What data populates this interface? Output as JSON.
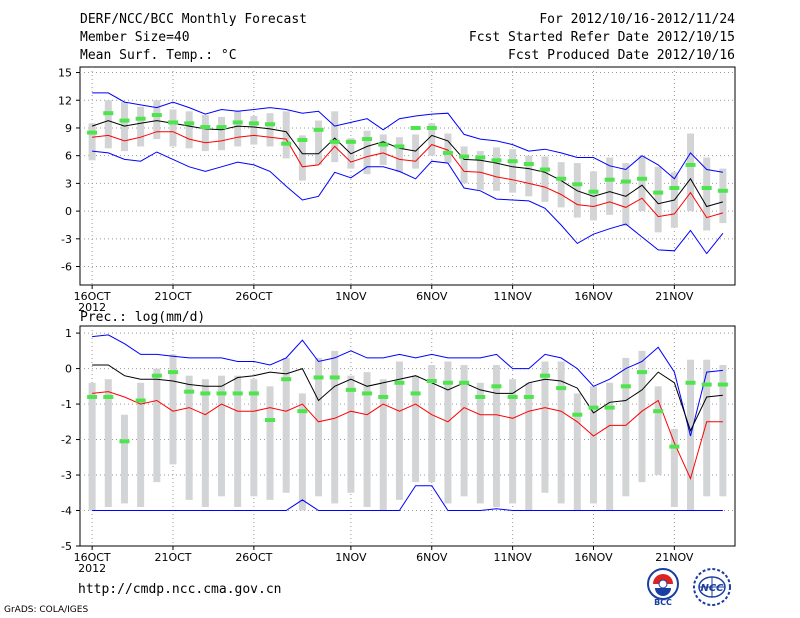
{
  "header": {
    "title": "DERF/NCC/BCC Monthly Forecast",
    "member_size": "Member Size=40",
    "variable": "Mean Surf. Temp.: °C",
    "forecast_period": "For 2012/10/16-2012/11/24",
    "started_refer": "Fcst Started Refer Date 2012/10/15",
    "produced": "Fcst Produced Date 2012/10/16"
  },
  "footer": {
    "url": "http://cmdp.ncc.cma.gov.cn",
    "credit": "GrADS: COLA/IGES",
    "logo_left_text": "BCC",
    "logo_right_text": "NCC"
  },
  "colors": {
    "max_line": "#0000ff",
    "min_line": "#ff0000",
    "mean_line": "#000000",
    "box": "#d3d4d6",
    "median_marker": "#4ee44e",
    "grid": "#999999"
  },
  "chart_data": [
    {
      "type": "line",
      "title": "Mean Surf. Temp.: °C",
      "x_tick_labels": [
        "16OCT",
        "21OCT",
        "26OCT",
        "1NOV",
        "6NOV",
        "11NOV",
        "16NOV",
        "21NOV"
      ],
      "x_tick_days": [
        0,
        5,
        10,
        16,
        21,
        26,
        31,
        36
      ],
      "year_label": "2012",
      "ylim": [
        -8,
        15.6
      ],
      "y_ticks": [
        -6,
        -3,
        0,
        3,
        6,
        9,
        12,
        15
      ],
      "days": 40,
      "series": [
        {
          "name": "max",
          "values": [
            12.8,
            12.8,
            11.8,
            11.5,
            11.2,
            11.8,
            11.2,
            10.5,
            11.0,
            10.8,
            11.0,
            11.2,
            11.0,
            10.6,
            10.8,
            9.2,
            9.6,
            10.0,
            8.8,
            10.0,
            10.3,
            10.5,
            10.6,
            8.3,
            7.8,
            7.6,
            7.2,
            6.5,
            6.7,
            6.3,
            5.8,
            5.8,
            4.9,
            4.5,
            6.0,
            5.0,
            3.5,
            6.3,
            4.5,
            4.2
          ]
        },
        {
          "name": "mean",
          "values": [
            9.2,
            9.8,
            9.2,
            9.5,
            9.8,
            9.5,
            9.2,
            8.9,
            8.8,
            9.2,
            9.1,
            8.9,
            8.6,
            6.2,
            6.2,
            7.9,
            6.2,
            7.0,
            7.5,
            6.8,
            6.5,
            8.2,
            7.6,
            5.6,
            5.5,
            5.2,
            4.8,
            4.6,
            4.2,
            3.3,
            2.2,
            1.6,
            2.1,
            1.6,
            2.8,
            0.8,
            1.2,
            3.5,
            0.5,
            1.0
          ]
        },
        {
          "name": "min",
          "values": [
            8.0,
            8.2,
            7.6,
            8.0,
            8.6,
            8.6,
            7.8,
            7.4,
            7.6,
            8.0,
            8.2,
            8.0,
            7.8,
            4.8,
            5.0,
            7.0,
            5.3,
            5.9,
            6.3,
            5.6,
            5.4,
            7.2,
            6.6,
            4.3,
            4.2,
            3.7,
            3.4,
            3.0,
            2.6,
            1.8,
            0.7,
            0.5,
            1.0,
            0.4,
            1.4,
            -0.6,
            -0.3,
            2.0,
            -0.7,
            -0.2
          ]
        },
        {
          "name": "lower",
          "values": [
            6.5,
            6.3,
            5.6,
            5.4,
            6.4,
            5.6,
            4.8,
            4.3,
            4.8,
            5.3,
            5.0,
            4.3,
            2.7,
            1.2,
            1.6,
            4.2,
            3.6,
            4.8,
            4.8,
            4.3,
            3.5,
            5.4,
            5.2,
            2.5,
            2.2,
            1.3,
            1.2,
            1.1,
            0.3,
            -1.5,
            -3.5,
            -2.5,
            -1.9,
            -1.4,
            -2.8,
            -4.2,
            -4.3,
            -2.1,
            -4.6,
            -2.4
          ]
        },
        {
          "name": "median",
          "values": [
            8.5,
            10.6,
            9.8,
            10.0,
            10.4,
            9.6,
            9.5,
            9.1,
            9.1,
            9.6,
            9.5,
            9.4,
            7.3,
            7.7,
            8.8,
            7.5,
            7.5,
            7.8,
            7.2,
            7.0,
            9.0,
            9.0,
            6.3,
            5.9,
            5.8,
            5.5,
            5.4,
            5.1,
            4.5,
            3.5,
            2.9,
            2.1,
            3.4,
            3.2,
            3.5,
            2.0,
            2.5,
            5.0,
            2.5,
            2.2
          ]
        },
        {
          "name": "box_low",
          "values": [
            5.5,
            6.8,
            6.5,
            7.0,
            7.8,
            7.0,
            6.8,
            6.5,
            6.6,
            7.0,
            7.2,
            7.0,
            5.7,
            3.3,
            5.0,
            5.3,
            4.6,
            4.0,
            5.0,
            4.2,
            4.6,
            6.0,
            5.2,
            3.0,
            2.3,
            2.2,
            2.0,
            1.6,
            1.0,
            0.4,
            -0.7,
            -1.0,
            -0.4,
            -1.6,
            0.0,
            -2.3,
            -1.8,
            0.0,
            -2.1,
            -1.3
          ]
        },
        {
          "name": "box_high",
          "values": [
            9.5,
            12.0,
            11.8,
            11.3,
            12.0,
            11.0,
            10.8,
            10.4,
            10.2,
            10.9,
            10.3,
            10.6,
            10.8,
            8.2,
            9.8,
            10.8,
            7.9,
            8.7,
            8.3,
            8.0,
            8.3,
            9.5,
            8.4,
            7.0,
            6.5,
            6.9,
            6.7,
            6.0,
            5.9,
            5.3,
            5.2,
            4.3,
            5.8,
            5.2,
            6.0,
            4.8,
            4.2,
            8.4,
            5.8,
            4.6
          ]
        }
      ]
    },
    {
      "type": "line",
      "title": "Prec.: log(mm/d)",
      "x_tick_labels": [
        "16OCT",
        "21OCT",
        "26OCT",
        "1NOV",
        "6NOV",
        "11NOV",
        "16NOV",
        "21NOV"
      ],
      "x_tick_days": [
        0,
        5,
        10,
        16,
        21,
        26,
        31,
        36
      ],
      "year_label": "2012",
      "ylim": [
        -5,
        1.2
      ],
      "y_ticks": [
        -5,
        -4,
        -3,
        -2,
        -1,
        0,
        1
      ],
      "days": 40,
      "series": [
        {
          "name": "max",
          "values": [
            0.9,
            0.95,
            0.7,
            0.4,
            0.4,
            0.35,
            0.3,
            0.3,
            0.3,
            0.2,
            0.2,
            0.1,
            0.3,
            0.8,
            0.2,
            0.3,
            0.5,
            0.3,
            0.3,
            0.4,
            0.3,
            0.4,
            0.3,
            0.3,
            0.3,
            0.4,
            0.0,
            0.0,
            0.4,
            0.3,
            0.0,
            -0.5,
            -0.3,
            0.0,
            0.2,
            0.6,
            -0.1,
            -1.9,
            -0.1,
            -0.05
          ]
        },
        {
          "name": "mean",
          "values": [
            0.1,
            0.1,
            -0.2,
            -0.3,
            -0.3,
            -0.35,
            -0.45,
            -0.5,
            -0.5,
            -0.25,
            -0.2,
            -0.1,
            -0.15,
            0.0,
            -0.9,
            -0.5,
            -0.3,
            -0.5,
            -0.4,
            -0.3,
            -0.2,
            -0.4,
            -0.6,
            -0.4,
            -0.6,
            -0.7,
            -0.7,
            -0.4,
            -0.3,
            -0.35,
            -0.55,
            -1.25,
            -0.95,
            -0.9,
            -0.6,
            -0.1,
            -0.4,
            -1.75,
            -0.8,
            -0.75
          ]
        },
        {
          "name": "min",
          "values": [
            -0.7,
            -0.65,
            -0.8,
            -1.0,
            -0.9,
            -1.2,
            -1.1,
            -1.3,
            -1.0,
            -1.2,
            -1.2,
            -1.1,
            -1.2,
            -1.0,
            -1.5,
            -1.4,
            -1.2,
            -1.3,
            -1.0,
            -1.2,
            -1.0,
            -1.3,
            -1.5,
            -1.1,
            -1.3,
            -1.3,
            -1.4,
            -1.2,
            -1.1,
            -1.2,
            -1.5,
            -1.9,
            -1.6,
            -1.6,
            -1.2,
            -0.9,
            -2.1,
            -3.1,
            -1.5,
            -1.5
          ]
        },
        {
          "name": "lower",
          "values": [
            -4,
            -4,
            -4,
            -4,
            -4,
            -4,
            -4,
            -4,
            -4,
            -4,
            -4,
            -4,
            -4,
            -3.7,
            -4,
            -4,
            -4,
            -4,
            -4,
            -4,
            -3.3,
            -3.3,
            -4,
            -4,
            -4,
            -3.95,
            -4,
            -4,
            -4,
            -4,
            -4,
            -4,
            -4,
            -4,
            -4,
            -4,
            -4,
            -4,
            -4,
            -4
          ]
        },
        {
          "name": "median",
          "values": [
            -0.8,
            -0.8,
            -2.05,
            -0.9,
            -0.2,
            -0.1,
            -0.65,
            -0.7,
            -0.7,
            -0.7,
            -0.7,
            -1.45,
            -0.3,
            -1.2,
            -0.25,
            -0.25,
            -0.6,
            -0.7,
            -0.8,
            -0.4,
            -0.7,
            -0.35,
            -0.4,
            -0.4,
            -0.8,
            -0.5,
            -0.8,
            -0.8,
            -0.2,
            -0.55,
            -1.3,
            -1.1,
            -1.1,
            -0.5,
            -0.1,
            -1.2,
            -2.2,
            -0.4,
            -0.45,
            -0.45
          ]
        },
        {
          "name": "box_low",
          "values": [
            -4.0,
            -3.9,
            -3.8,
            -3.9,
            -3.2,
            -2.7,
            -3.7,
            -3.9,
            -3.6,
            -3.9,
            -3.6,
            -3.7,
            -3.5,
            -4.0,
            -3.6,
            -3.8,
            -3.5,
            -3.9,
            -4.0,
            -3.7,
            -3.2,
            -3.2,
            -3.8,
            -3.6,
            -3.8,
            -3.9,
            -3.8,
            -4.0,
            -3.5,
            -3.8,
            -4.0,
            -3.8,
            -4.0,
            -3.6,
            -3.2,
            -3.0,
            -3.9,
            -4.0,
            -3.6,
            -3.6
          ]
        },
        {
          "name": "box_high",
          "values": [
            -0.4,
            -0.3,
            -1.3,
            -0.4,
            0.0,
            0.4,
            -0.2,
            -0.3,
            -0.2,
            -0.2,
            -0.3,
            -0.5,
            0.3,
            -0.7,
            0.3,
            0.5,
            -0.2,
            -0.1,
            -0.3,
            0.2,
            -0.2,
            0.1,
            0.2,
            0.1,
            -0.4,
            0.1,
            -0.3,
            -0.4,
            0.2,
            0.2,
            -0.7,
            -0.5,
            -0.4,
            0.3,
            0.5,
            -0.5,
            -1.7,
            0.25,
            0.25,
            0.1
          ]
        }
      ]
    }
  ]
}
